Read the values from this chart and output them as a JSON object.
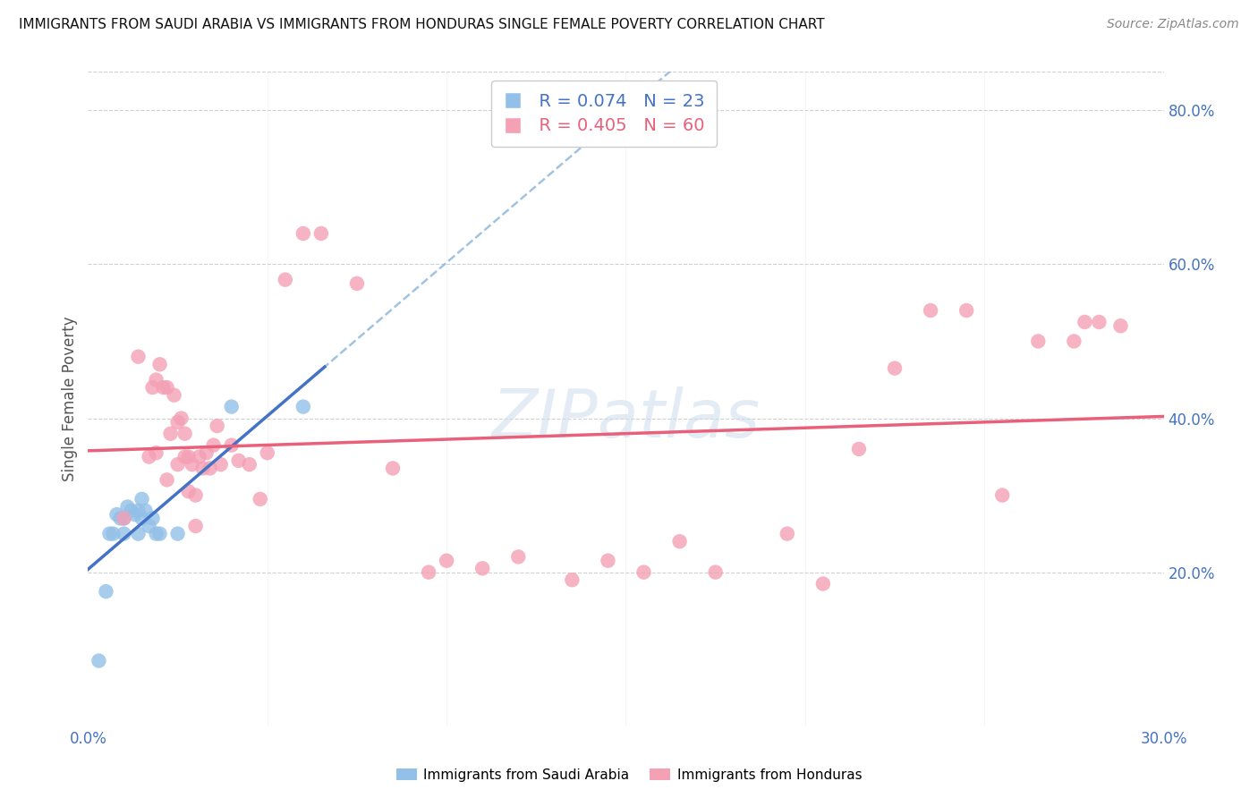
{
  "title": "IMMIGRANTS FROM SAUDI ARABIA VS IMMIGRANTS FROM HONDURAS SINGLE FEMALE POVERTY CORRELATION CHART",
  "source": "Source: ZipAtlas.com",
  "ylabel": "Single Female Poverty",
  "xlim": [
    0.0,
    0.3
  ],
  "ylim": [
    0.0,
    0.85
  ],
  "saudi_color": "#92c0e8",
  "honduras_color": "#f4a0b5",
  "saudi_line_color": "#4472c4",
  "saudi_dash_color": "#8ab4d8",
  "honduras_line_color": "#e8607a",
  "watermark": "ZIPatlas",
  "watermark_color": "#ccdded",
  "legend_R_saudi": "R = 0.074",
  "legend_N_saudi": "N = 23",
  "legend_R_honduras": "R = 0.405",
  "legend_N_honduras": "N = 60",
  "y_tick_positions": [
    0.2,
    0.4,
    0.6,
    0.8
  ],
  "y_tick_labels": [
    "20.0%",
    "40.0%",
    "60.0%",
    "80.0%"
  ],
  "x_tick_positions": [
    0.0,
    0.3
  ],
  "x_tick_labels": [
    "0.0%",
    "30.0%"
  ],
  "background_color": "#ffffff",
  "grid_color": "#d0d0d0",
  "tick_color": "#4472c4",
  "saudi_x": [
    0.003,
    0.005,
    0.006,
    0.007,
    0.008,
    0.009,
    0.01,
    0.01,
    0.011,
    0.012,
    0.013,
    0.014,
    0.014,
    0.015,
    0.015,
    0.016,
    0.017,
    0.018,
    0.019,
    0.02,
    0.025,
    0.04,
    0.06
  ],
  "saudi_y": [
    0.085,
    0.175,
    0.25,
    0.25,
    0.275,
    0.27,
    0.27,
    0.25,
    0.285,
    0.28,
    0.275,
    0.28,
    0.25,
    0.295,
    0.27,
    0.28,
    0.26,
    0.27,
    0.25,
    0.25,
    0.25,
    0.415,
    0.415
  ],
  "honduras_x": [
    0.01,
    0.014,
    0.017,
    0.018,
    0.019,
    0.019,
    0.02,
    0.021,
    0.022,
    0.022,
    0.023,
    0.024,
    0.025,
    0.025,
    0.026,
    0.027,
    0.027,
    0.028,
    0.028,
    0.029,
    0.03,
    0.03,
    0.031,
    0.032,
    0.033,
    0.034,
    0.035,
    0.036,
    0.037,
    0.04,
    0.042,
    0.045,
    0.048,
    0.05,
    0.055,
    0.06,
    0.065,
    0.075,
    0.085,
    0.095,
    0.1,
    0.11,
    0.12,
    0.135,
    0.145,
    0.155,
    0.165,
    0.175,
    0.195,
    0.205,
    0.215,
    0.225,
    0.235,
    0.245,
    0.255,
    0.265,
    0.275,
    0.278,
    0.282,
    0.288
  ],
  "honduras_y": [
    0.27,
    0.48,
    0.35,
    0.44,
    0.45,
    0.355,
    0.47,
    0.44,
    0.44,
    0.32,
    0.38,
    0.43,
    0.34,
    0.395,
    0.4,
    0.35,
    0.38,
    0.305,
    0.35,
    0.34,
    0.3,
    0.26,
    0.35,
    0.335,
    0.355,
    0.335,
    0.365,
    0.39,
    0.34,
    0.365,
    0.345,
    0.34,
    0.295,
    0.355,
    0.58,
    0.64,
    0.64,
    0.575,
    0.335,
    0.2,
    0.215,
    0.205,
    0.22,
    0.19,
    0.215,
    0.2,
    0.24,
    0.2,
    0.25,
    0.185,
    0.36,
    0.465,
    0.54,
    0.54,
    0.3,
    0.5,
    0.5,
    0.525,
    0.525,
    0.52
  ]
}
